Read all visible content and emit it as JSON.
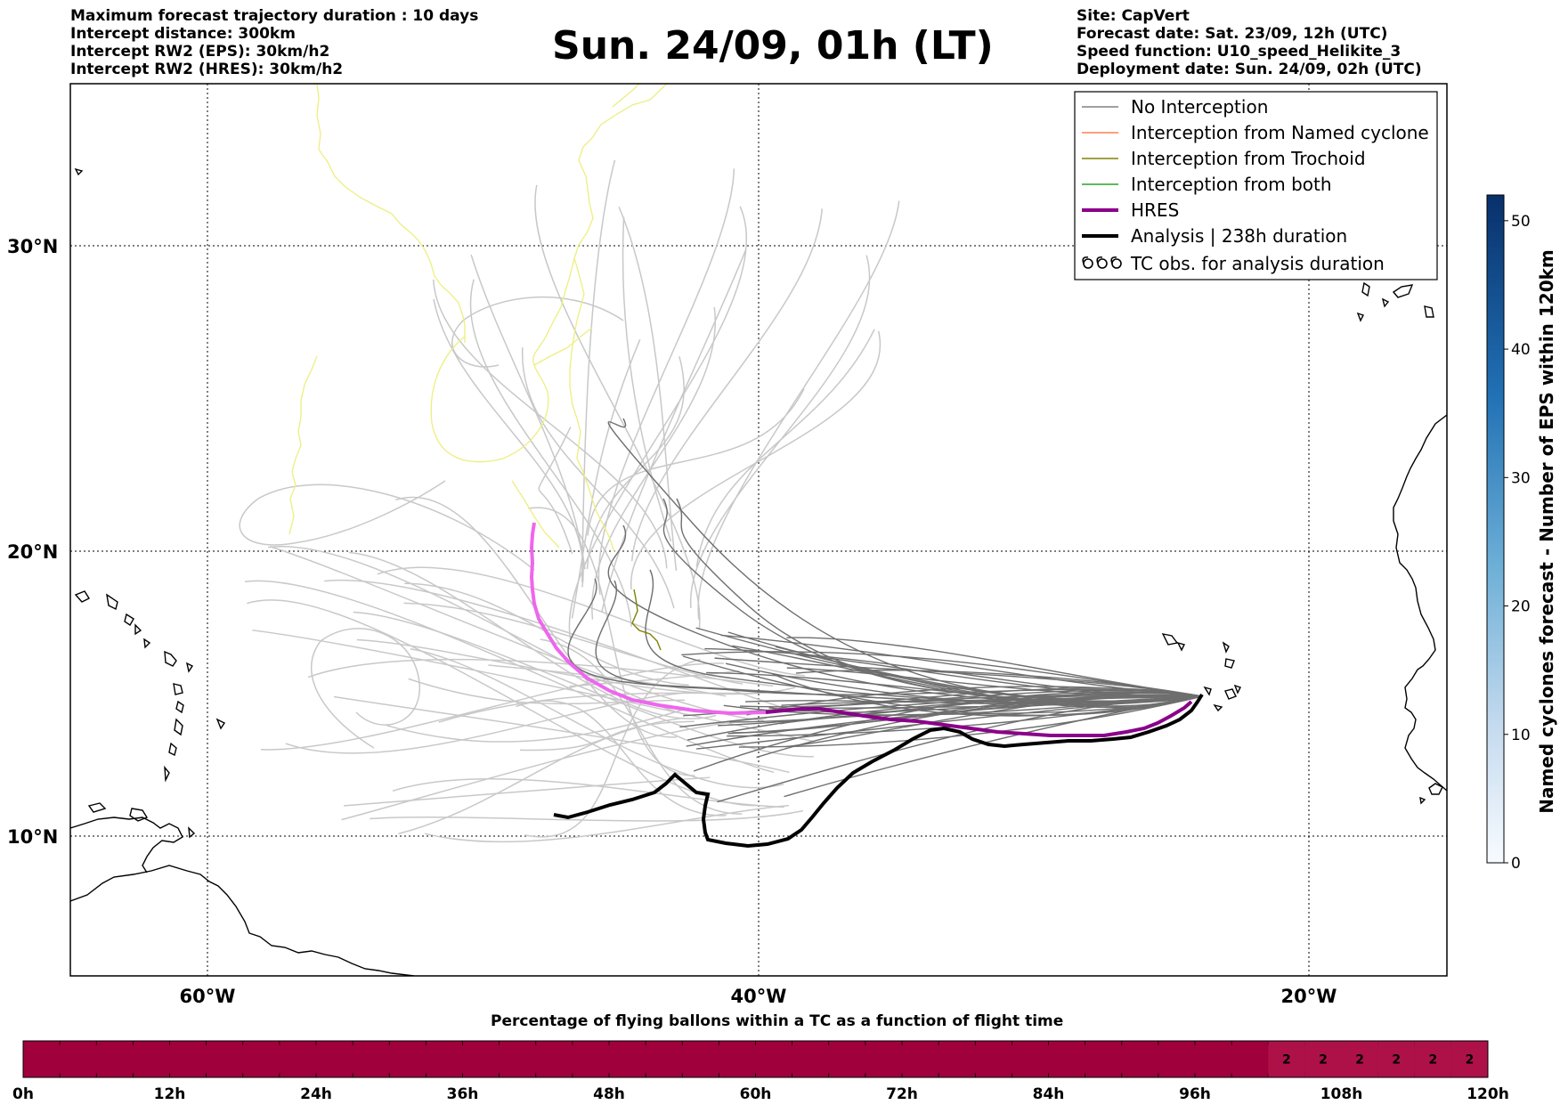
{
  "header_left": [
    "Maximum forecast trajectory duration : 10 days",
    "Intercept distance: 300km",
    "Intercept RW2 (EPS):  30km/h2",
    "Intercept RW2 (HRES): 30km/h2"
  ],
  "header_right": [
    "Site: CapVert",
    "Forecast date: Sat. 23/09, 12h (UTC)",
    "Speed function: U10_speed_Helikite_3",
    "Deployment date: Sun. 24/09, 02h (UTC)"
  ],
  "title": "Sun. 24/09, 01h (LT)",
  "lat_labels": [
    "30°N",
    "20°N",
    "10°N"
  ],
  "lon_labels": [
    "60°W",
    "40°W",
    "20°W"
  ],
  "legend": [
    {
      "label": "No Interception",
      "color": "#808080"
    },
    {
      "label": "Interception from Named cyclone",
      "color": "#ff7f50"
    },
    {
      "label": "Interception from Trochoid",
      "color": "#808000"
    },
    {
      "label": "Interception from both",
      "color": "#2ca02c"
    },
    {
      "label": "HRES",
      "color": "#8b008b"
    },
    {
      "label": "Analysis | 238h duration",
      "color": "#000000"
    },
    {
      "label": "TC obs. for analysis duration",
      "icon": "cyclone-symbol-icon"
    }
  ],
  "colorbar": {
    "title": "Named cyclones forecast - Number of EPS within 120km",
    "ticks": [
      "0",
      "10",
      "20",
      "30",
      "40",
      "50"
    ],
    "range": [
      0,
      52
    ],
    "colormap": "Blues"
  },
  "bottom_bar": {
    "title": "Percentage of flying ballons within a TC as a function of flight time",
    "ticks": [
      "0h",
      "12h",
      "24h",
      "36h",
      "48h",
      "60h",
      "72h",
      "84h",
      "96h",
      "108h",
      "120h"
    ],
    "main_color": "#a0003c",
    "cell_color": "#ad1148",
    "cell_values": [
      "2",
      "2",
      "2",
      "2",
      "2",
      "2"
    ]
  },
  "colors": {
    "eps_light": "#c8c8c8",
    "eps_dark": "#6e6e6e",
    "hres_over_ocean": "#ee66ee",
    "hres_east": "#8b008b",
    "analysis": "#000000",
    "trochoid": "#808000",
    "tc_track": "#eeee80"
  }
}
